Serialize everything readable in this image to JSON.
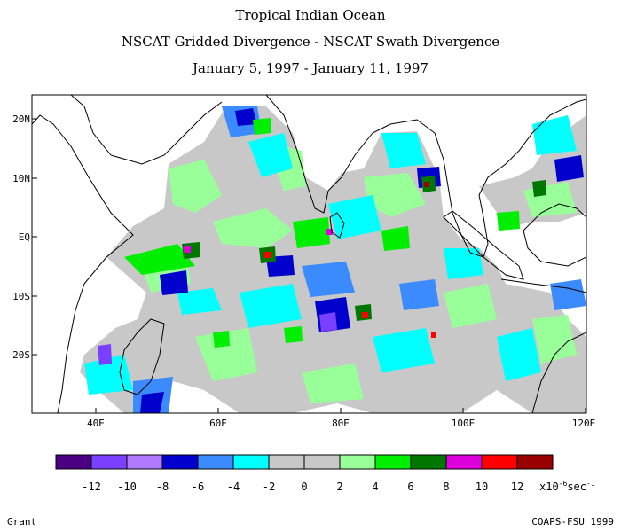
{
  "title": {
    "line1": "Tropical Indian Ocean",
    "line2": "NSCAT Gridded Divergence - NSCAT Swath Divergence",
    "line3": "January 5, 1997 - January 11, 1997"
  },
  "axes": {
    "lat_labels": [
      "20N",
      "10N",
      "EQ",
      "10S",
      "20S"
    ],
    "lon_labels": [
      "40E",
      "60E",
      "80E",
      "100E",
      "120E"
    ]
  },
  "colorbar": {
    "labels": [
      "-12",
      "-10",
      "-8",
      "-6",
      "-4",
      "-2",
      "0",
      "2",
      "4",
      "6",
      "8",
      "10",
      "12"
    ],
    "unit": "x10",
    "unit_exp": "-6",
    "unit_tail": "sec",
    "unit_tail_exp": "-1",
    "colors": [
      "#4b0082",
      "#7b3fff",
      "#b07aff",
      "#0000cc",
      "#3b8bff",
      "#00ffff",
      "#c8c8c8",
      "#c8c8c8",
      "#99ff99",
      "#00ee00",
      "#007700",
      "#dd00dd",
      "#ff0000",
      "#990000"
    ]
  },
  "footer": {
    "left": "Grant",
    "right": "COAPS-FSU 1999"
  },
  "map": {
    "region": "Tropical Indian Ocean",
    "lon_range": [
      30,
      121
    ],
    "lat_range": [
      -30,
      24
    ],
    "fill_colors": {
      "neutral": "#c8c8c8",
      "pos2": "#99ff99",
      "pos4": "#00ee00",
      "pos6": "#007700",
      "pos8": "#dd00dd",
      "pos10": "#ff0000",
      "neg4": "#00ffff",
      "neg6": "#3b8bff",
      "neg8": "#0000cc",
      "neg10": "#7b3fff"
    }
  }
}
